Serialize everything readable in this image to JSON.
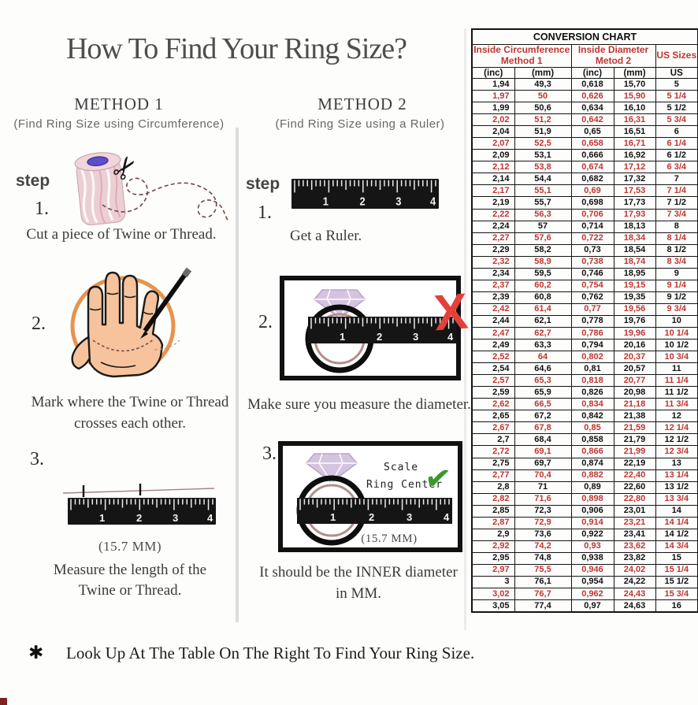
{
  "page": {
    "title": "How To Find Your Ring Size?",
    "footer_symbol": "✱",
    "footer": "Look Up At The Table On The Right To Find Your Ring Size."
  },
  "icons": {
    "scissors": "✂",
    "wrong_mark": "X",
    "check_mark": "✔"
  },
  "ruler_numbers": [
    "1",
    "2",
    "3",
    "4"
  ],
  "method1": {
    "name": "METHOD 1",
    "subtitle": "(Find Ring Size using Circumference)",
    "step_label": "step",
    "step1_num": "1.",
    "step1_caption": "Cut a piece of Twine or Thread.",
    "step2_num": "2.",
    "step2_caption_line1": "Mark where the Twine or Thread",
    "step2_caption_line2": "crosses each other.",
    "step3_num": "3.",
    "step3_note": "(15.7 MM)",
    "step3_caption_line1": "Measure the length of the",
    "step3_caption_line2": "Twine or Thread."
  },
  "method2": {
    "name": "METHOD 2",
    "subtitle": "(Find Ring Size using a Ruler)",
    "step_label": "step",
    "step1_num": "1.",
    "step1_caption": "Get a Ruler.",
    "step2_num": "2.",
    "step2_caption": "Make sure you measure the diameter.",
    "step3_num": "3.",
    "scale_label_line1": "Scale",
    "scale_label_line2": "Ring Center",
    "scale_note": "(15.7 MM)",
    "step3_caption_line1": "It should be the INNER diameter",
    "step3_caption_line2": "in MM."
  },
  "colors": {
    "table_red": "#bf3531",
    "wrong_red": "#e2413b",
    "check_green": "#3a9b27",
    "circle_orange": "#e68a3e",
    "hand_skin": "#f6c39c",
    "spool_pink": "#eccfd4",
    "ring_inner": "#b28e8d",
    "diamond_lavender": "#d5c4e0"
  },
  "chart_data": {
    "type": "table",
    "title": "CONVERSION CHART",
    "col_groups": [
      "Inside Circumference\nMethod 1",
      "Inside Diameter\nMetod 2",
      "US Sizes"
    ],
    "sub_headers": [
      "(inc)",
      "(mm)",
      "(inc)",
      "(mm)",
      "US"
    ],
    "rows": [
      [
        "1,94",
        "49,3",
        "0,618",
        "15,70",
        "5"
      ],
      [
        "1,97",
        "50",
        "0,626",
        "15,90",
        "5 1/4"
      ],
      [
        "1,99",
        "50,6",
        "0,634",
        "16,10",
        "5 1/2"
      ],
      [
        "2,02",
        "51,2",
        "0,642",
        "16,31",
        "5 3/4"
      ],
      [
        "2,04",
        "51,9",
        "0,65",
        "16,51",
        "6"
      ],
      [
        "2,07",
        "52,5",
        "0,658",
        "16,71",
        "6 1/4"
      ],
      [
        "2,09",
        "53,1",
        "0,666",
        "16,92",
        "6 1/2"
      ],
      [
        "2,12",
        "53,8",
        "0,674",
        "17,12",
        "6 3/4"
      ],
      [
        "2,14",
        "54,4",
        "0,682",
        "17,32",
        "7"
      ],
      [
        "2,17",
        "55,1",
        "0,69",
        "17,53",
        "7 1/4"
      ],
      [
        "2,19",
        "55,7",
        "0,698",
        "17,73",
        "7 1/2"
      ],
      [
        "2,22",
        "56,3",
        "0,706",
        "17,93",
        "7 3/4"
      ],
      [
        "2,24",
        "57",
        "0,714",
        "18,13",
        "8"
      ],
      [
        "2,27",
        "57,6",
        "0,722",
        "18,34",
        "8 1/4"
      ],
      [
        "2,29",
        "58,2",
        "0,73",
        "18,54",
        "8 1/2"
      ],
      [
        "2,32",
        "58,9",
        "0,738",
        "18,74",
        "8 3/4"
      ],
      [
        "2,34",
        "59,5",
        "0,746",
        "18,95",
        "9"
      ],
      [
        "2,37",
        "60,2",
        "0,754",
        "19,15",
        "9 1/4"
      ],
      [
        "2,39",
        "60,8",
        "0,762",
        "19,35",
        "9 1/2"
      ],
      [
        "2,42",
        "61,4",
        "0,77",
        "19,56",
        "9 3/4"
      ],
      [
        "2,44",
        "62,1",
        "0,778",
        "19,76",
        "10"
      ],
      [
        "2,47",
        "62,7",
        "0,786",
        "19,96",
        "10 1/4"
      ],
      [
        "2,49",
        "63,3",
        "0,794",
        "20,16",
        "10 1/2"
      ],
      [
        "2,52",
        "64",
        "0,802",
        "20,37",
        "10 3/4"
      ],
      [
        "2,54",
        "64,6",
        "0,81",
        "20,57",
        "11"
      ],
      [
        "2,57",
        "65,3",
        "0,818",
        "20,77",
        "11 1/4"
      ],
      [
        "2,59",
        "65,9",
        "0,826",
        "20,98",
        "11 1/2"
      ],
      [
        "2,62",
        "66,5",
        "0,834",
        "21,18",
        "11 3/4"
      ],
      [
        "2,65",
        "67,2",
        "0,842",
        "21,38",
        "12"
      ],
      [
        "2,67",
        "67,8",
        "0,85",
        "21,59",
        "12 1/4"
      ],
      [
        "2,7",
        "68,4",
        "0,858",
        "21,79",
        "12 1/2"
      ],
      [
        "2,72",
        "69,1",
        "0,866",
        "21,99",
        "12 3/4"
      ],
      [
        "2,75",
        "69,7",
        "0,874",
        "22,19",
        "13"
      ],
      [
        "2,77",
        "70,4",
        "0,882",
        "22,40",
        "13 1/4"
      ],
      [
        "2,8",
        "71",
        "0,89",
        "22,60",
        "13 1/2"
      ],
      [
        "2,82",
        "71,6",
        "0,898",
        "22,80",
        "13 3/4"
      ],
      [
        "2,85",
        "72,3",
        "0,906",
        "23,01",
        "14"
      ],
      [
        "2,87",
        "72,9",
        "0,914",
        "23,21",
        "14 1/4"
      ],
      [
        "2,9",
        "73,6",
        "0,922",
        "23,41",
        "14 1/2"
      ],
      [
        "2,92",
        "74,2",
        "0,93",
        "23,62",
        "14 3/4"
      ],
      [
        "2,95",
        "74,8",
        "0,938",
        "23,82",
        "15"
      ],
      [
        "2,97",
        "75,5",
        "0,946",
        "24,02",
        "15 1/4"
      ],
      [
        "3",
        "76,1",
        "0,954",
        "24,22",
        "15 1/2"
      ],
      [
        "3,02",
        "76,7",
        "0,962",
        "24,43",
        "15 3/4"
      ],
      [
        "3,05",
        "77,4",
        "0,97",
        "24,63",
        "16"
      ]
    ]
  }
}
